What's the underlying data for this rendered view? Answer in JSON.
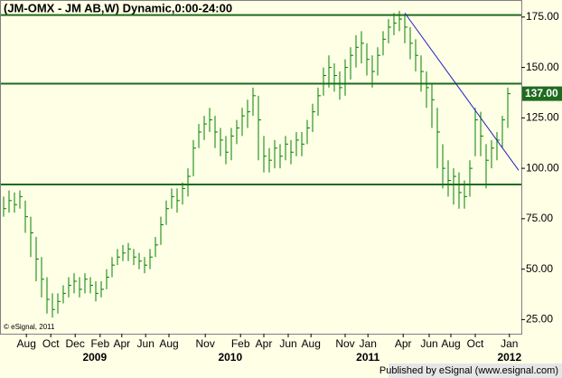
{
  "chart_data": {
    "type": "ohlc",
    "title": "(JM-OMX - JM AB,W) Dynamic,0:00-24:00",
    "close": [
      80,
      84,
      82,
      86,
      76,
      68,
      55,
      45,
      35,
      30,
      34,
      38,
      42,
      44,
      40,
      45,
      42,
      38,
      40,
      46,
      52,
      56,
      58,
      60,
      56,
      54,
      52,
      56,
      62,
      72,
      80,
      86,
      84,
      90,
      96,
      110,
      118,
      122,
      124,
      118,
      114,
      108,
      116,
      120,
      126,
      128,
      136,
      124,
      106,
      104,
      110,
      106,
      112,
      108,
      114,
      112,
      120,
      128,
      136,
      146,
      150,
      146,
      140,
      150,
      156,
      160,
      162,
      154,
      148,
      156,
      164,
      170,
      172,
      174,
      170,
      162,
      156,
      148,
      140,
      134,
      118,
      100,
      94,
      96,
      88,
      86,
      100,
      124,
      116,
      104,
      110,
      114,
      124,
      137
    ],
    "high": [
      86,
      89,
      88,
      89,
      84,
      76,
      66,
      56,
      46,
      38,
      38,
      42,
      46,
      48,
      46,
      48,
      46,
      44,
      44,
      50,
      56,
      60,
      62,
      63,
      60,
      58,
      56,
      60,
      66,
      76,
      84,
      90,
      90,
      93,
      100,
      114,
      122,
      126,
      130,
      126,
      120,
      116,
      120,
      124,
      130,
      134,
      140,
      136,
      116,
      110,
      114,
      112,
      116,
      114,
      118,
      118,
      124,
      132,
      140,
      150,
      156,
      152,
      148,
      154,
      160,
      166,
      168,
      162,
      156,
      160,
      168,
      174,
      177,
      178,
      176,
      170,
      164,
      156,
      148,
      142,
      130,
      112,
      104,
      100,
      98,
      94,
      104,
      130,
      128,
      112,
      114,
      118,
      126,
      140
    ],
    "low": [
      76,
      78,
      78,
      80,
      68,
      56,
      44,
      36,
      28,
      26,
      28,
      33,
      36,
      38,
      36,
      38,
      38,
      34,
      36,
      40,
      46,
      52,
      54,
      54,
      52,
      50,
      48,
      50,
      56,
      62,
      72,
      80,
      78,
      82,
      86,
      96,
      110,
      114,
      118,
      110,
      106,
      102,
      104,
      112,
      116,
      120,
      126,
      104,
      98,
      98,
      100,
      100,
      104,
      102,
      106,
      106,
      112,
      118,
      126,
      136,
      140,
      138,
      134,
      136,
      144,
      150,
      152,
      146,
      140,
      146,
      156,
      162,
      166,
      168,
      162,
      154,
      148,
      138,
      130,
      120,
      100,
      90,
      86,
      82,
      80,
      80,
      86,
      106,
      106,
      90,
      100,
      104,
      110,
      120
    ],
    "color": "#008000",
    "last_label": "137.00",
    "levels": [
      176,
      142,
      92
    ],
    "level_color": "#1f6b1f",
    "trendline": {
      "x": [
        74,
        95
      ],
      "y": [
        177,
        99
      ],
      "color": "#2020c0"
    },
    "ylim": [
      18,
      183
    ],
    "yticks": [
      {
        "value": 25,
        "label": "25.00"
      },
      {
        "value": 50,
        "label": "50.00"
      },
      {
        "value": 75,
        "label": "75.00"
      },
      {
        "value": 100,
        "label": "100.00"
      },
      {
        "value": 125,
        "label": "125.00"
      },
      {
        "value": 150,
        "label": "150.00"
      },
      {
        "value": 175,
        "label": "175.00"
      }
    ],
    "xlim": [
      -0.5,
      95.5
    ],
    "xticks": [
      {
        "value": 4.2,
        "label": "Aug"
      },
      {
        "value": 8.7,
        "label": "Oct"
      },
      {
        "value": 13.2,
        "label": "Dec"
      },
      {
        "value": 17.8,
        "label": "Feb"
      },
      {
        "value": 21.8,
        "label": "Apr"
      },
      {
        "value": 26.2,
        "label": "Jun"
      },
      {
        "value": 30.5,
        "label": "Aug"
      },
      {
        "value": 37.2,
        "label": "Nov"
      },
      {
        "value": 43.7,
        "label": "Feb"
      },
      {
        "value": 48,
        "label": "Apr"
      },
      {
        "value": 52.5,
        "label": "Jun"
      },
      {
        "value": 56.7,
        "label": "Aug"
      },
      {
        "value": 63,
        "label": "Nov"
      },
      {
        "value": 67.2,
        "label": "Jan"
      },
      {
        "value": 73.7,
        "label": "Apr"
      },
      {
        "value": 78.5,
        "label": "Jun"
      },
      {
        "value": 82.5,
        "label": "Aug"
      },
      {
        "value": 87,
        "label": "Oct"
      },
      {
        "value": 93.3,
        "label": "Jan"
      }
    ],
    "year_ticks": [
      {
        "value": 16.8,
        "label": "2009"
      },
      {
        "value": 41.8,
        "label": "2010"
      },
      {
        "value": 67.2,
        "label": "2011"
      },
      {
        "value": 93.3,
        "label": "2012"
      }
    ],
    "copyright": "© eSignal, 2011",
    "publisher": "Published by eSignal (www.esignal.com)"
  }
}
